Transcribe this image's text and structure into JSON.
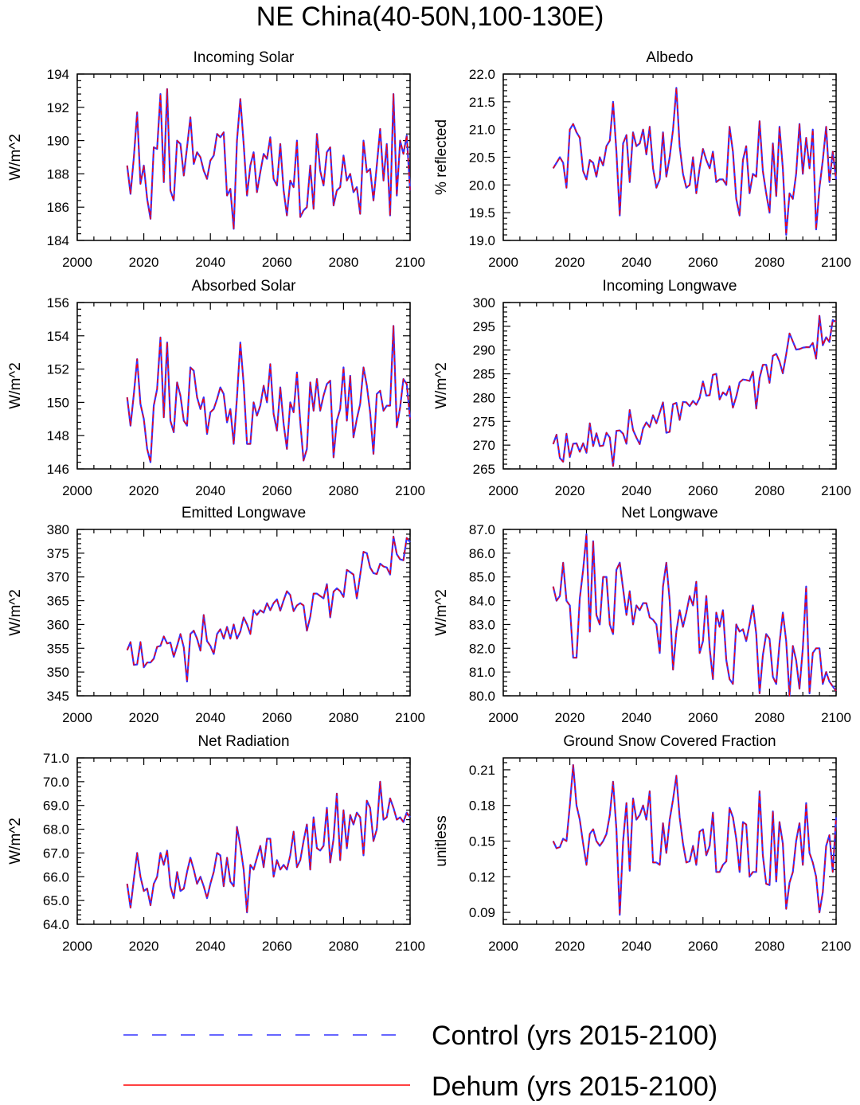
{
  "page_title": "NE China(40-50N,100-130E)",
  "legend": {
    "control_label": "Control (yrs 2015-2100)",
    "dehum_label": "Dehum (yrs 2015-2100)",
    "control_color": "#3333ff",
    "dehum_color": "#ff0000",
    "placement": "bottom"
  },
  "x_start_year": 2015,
  "chart_data": [
    {
      "type": "line",
      "title": "Incoming Solar",
      "ylabel": "W/m^2",
      "xlim": [
        2000,
        2100
      ],
      "ylim": [
        184,
        194
      ],
      "xticks": [
        2000,
        2020,
        2040,
        2060,
        2080,
        2100
      ],
      "yticks": [
        184,
        186,
        188,
        190,
        192,
        194
      ],
      "ytick_labels": [
        "184",
        "186",
        "188",
        "190",
        "192",
        "194"
      ],
      "grid": false,
      "series": [
        {
          "name": "Control (yrs 2015-2100)",
          "values": [
            188.5,
            186.8,
            189.0,
            191.7,
            187.4,
            188.5,
            186.5,
            185.3,
            189.6,
            189.5,
            192.8,
            187.5,
            193.1,
            187.0,
            186.4,
            190.0,
            189.8,
            187.9,
            189.6,
            191.4,
            188.6,
            189.3,
            189.0,
            188.2,
            187.7,
            188.8,
            189.1,
            190.4,
            190.2,
            190.5,
            186.7,
            187.1,
            184.7,
            190.0,
            192.5,
            189.8,
            186.7,
            188.5,
            189.3,
            186.9,
            188.1,
            189.2,
            188.9,
            190.2,
            187.7,
            187.3,
            189.8,
            187.0,
            185.5,
            187.6,
            187.2,
            190.0,
            185.4,
            185.8,
            186.0,
            188.5,
            185.9,
            190.4,
            188.2,
            187.3,
            189.3,
            189.6,
            186.1,
            187.0,
            187.2,
            189.1,
            187.6,
            188.0,
            186.9,
            187.2,
            185.6,
            190.0,
            188.1,
            188.3,
            186.4,
            188.5,
            190.7,
            187.6,
            189.8,
            185.5,
            192.8,
            186.7,
            190.0,
            189.2,
            190.3,
            187.0
          ]
        }
      ]
    },
    {
      "type": "line",
      "title": "Albedo",
      "ylabel": "% reflected",
      "xlim": [
        2000,
        2100
      ],
      "ylim": [
        19.0,
        22.0
      ],
      "xticks": [
        2000,
        2020,
        2040,
        2060,
        2080,
        2100
      ],
      "yticks": [
        19.0,
        19.5,
        20.0,
        20.5,
        21.0,
        21.5,
        22.0
      ],
      "ytick_labels": [
        "19.0",
        "19.5",
        "20.0",
        "20.5",
        "21.0",
        "21.5",
        "22.0"
      ],
      "grid": false,
      "series": [
        {
          "name": "Control (yrs 2015-2100)",
          "values": [
            20.3,
            20.4,
            20.5,
            20.4,
            19.95,
            21.0,
            21.1,
            20.95,
            20.85,
            20.25,
            20.1,
            20.45,
            20.4,
            20.15,
            20.5,
            20.35,
            20.7,
            20.8,
            21.5,
            20.6,
            19.45,
            20.75,
            20.9,
            20.05,
            20.95,
            20.7,
            20.75,
            21.0,
            20.55,
            21.05,
            20.3,
            19.95,
            20.1,
            20.95,
            20.15,
            20.5,
            21.0,
            21.75,
            20.7,
            20.2,
            19.95,
            20.0,
            20.5,
            19.85,
            20.3,
            20.65,
            20.45,
            20.3,
            20.6,
            20.05,
            20.1,
            20.1,
            20.0,
            21.05,
            20.6,
            19.75,
            19.45,
            20.45,
            20.7,
            19.85,
            20.2,
            20.15,
            21.15,
            20.25,
            19.85,
            19.5,
            20.75,
            19.8,
            21.05,
            20.3,
            19.1,
            19.85,
            19.75,
            20.2,
            21.1,
            20.2,
            20.85,
            20.3,
            21.0,
            19.2,
            19.95,
            20.45,
            21.05,
            20.05,
            20.6,
            20.1
          ]
        }
      ]
    },
    {
      "type": "line",
      "title": "Absorbed Solar",
      "ylabel": "W/m^2",
      "xlim": [
        2000,
        2100
      ],
      "ylim": [
        146,
        156
      ],
      "xticks": [
        2000,
        2020,
        2040,
        2060,
        2080,
        2100
      ],
      "yticks": [
        146,
        148,
        150,
        152,
        154,
        156
      ],
      "ytick_labels": [
        "146",
        "148",
        "150",
        "152",
        "154",
        "156"
      ],
      "grid": false,
      "series": [
        {
          "name": "Control (yrs 2015-2100)",
          "values": [
            150.3,
            148.6,
            150.5,
            152.6,
            149.9,
            149.0,
            147.2,
            146.4,
            149.8,
            150.8,
            153.9,
            149.1,
            153.6,
            148.9,
            148.2,
            151.2,
            150.4,
            148.9,
            148.6,
            152.1,
            151.9,
            150.3,
            149.6,
            150.3,
            148.1,
            149.4,
            149.6,
            150.2,
            150.9,
            150.5,
            148.8,
            149.6,
            147.5,
            150.3,
            153.6,
            151.1,
            147.5,
            147.5,
            150.0,
            149.2,
            149.8,
            151.0,
            150.0,
            152.3,
            149.3,
            148.3,
            150.9,
            148.7,
            147.2,
            150.0,
            149.4,
            151.8,
            148.8,
            146.5,
            147.2,
            151.2,
            149.5,
            151.4,
            149.5,
            150.4,
            151.1,
            151.3,
            146.7,
            148.9,
            149.6,
            152.1,
            148.9,
            151.6,
            147.9,
            149.0,
            149.9,
            152.1,
            151.0,
            149.4,
            146.9,
            150.5,
            150.7,
            149.5,
            149.8,
            149.8,
            154.6,
            148.5,
            149.7,
            151.4,
            151.1,
            149.0
          ]
        }
      ]
    },
    {
      "type": "line",
      "title": "Incoming Longwave",
      "ylabel": "W/m^2",
      "xlim": [
        2000,
        2100
      ],
      "ylim": [
        265,
        300
      ],
      "xticks": [
        2000,
        2020,
        2040,
        2060,
        2080,
        2100
      ],
      "yticks": [
        265,
        270,
        275,
        280,
        285,
        290,
        295,
        300
      ],
      "ytick_labels": [
        "265",
        "270",
        "275",
        "280",
        "285",
        "290",
        "295",
        "300"
      ],
      "grid": false,
      "series": [
        {
          "name": "Control (yrs 2015-2100)",
          "values": [
            270.2,
            272.2,
            267.3,
            266.5,
            272.4,
            267.5,
            270.3,
            270.4,
            268.6,
            270.4,
            268.4,
            274.6,
            269.8,
            272.5,
            269.8,
            269.9,
            272.6,
            271.6,
            265.6,
            273.0,
            273.1,
            272.4,
            270.3,
            277.4,
            273.2,
            271.6,
            270.2,
            273.5,
            274.8,
            273.8,
            276.3,
            274.6,
            276.8,
            279.0,
            272.6,
            272.8,
            278.6,
            278.9,
            275.3,
            279.1,
            279.0,
            278.2,
            279.3,
            278.5,
            279.9,
            283.4,
            280.4,
            280.5,
            284.8,
            285.0,
            279.6,
            281.1,
            280.5,
            282.4,
            277.9,
            280.2,
            283.2,
            283.8,
            283.7,
            283.5,
            285.5,
            277.7,
            284.1,
            286.9,
            286.9,
            283.1,
            288.8,
            289.2,
            287.6,
            285.1,
            289.1,
            293.5,
            291.8,
            290.1,
            290.2,
            290.5,
            290.6,
            290.6,
            291.5,
            288.2,
            297.2,
            291.0,
            292.7,
            291.7,
            296.3,
            296.0
          ]
        }
      ]
    },
    {
      "type": "line",
      "title": "Emitted Longwave",
      "ylabel": "W/m^2",
      "xlim": [
        2000,
        2100
      ],
      "ylim": [
        345,
        380
      ],
      "xticks": [
        2000,
        2020,
        2040,
        2060,
        2080,
        2100
      ],
      "yticks": [
        345,
        350,
        355,
        360,
        365,
        370,
        375,
        380
      ],
      "ytick_labels": [
        "345",
        "350",
        "355",
        "360",
        "365",
        "370",
        "375",
        "380"
      ],
      "grid": false,
      "series": [
        {
          "name": "Control (yrs 2015-2100)",
          "values": [
            354.6,
            356.3,
            351.5,
            351.6,
            356.3,
            351.0,
            352.0,
            352.0,
            352.8,
            355.3,
            355.5,
            357.5,
            356.0,
            356.2,
            353.2,
            355.5,
            358.0,
            355.2,
            348.0,
            358.0,
            358.7,
            357.0,
            354.5,
            362.0,
            356.5,
            355.5,
            353.8,
            358.0,
            359.0,
            357.0,
            359.5,
            357.0,
            360.0,
            357.0,
            358.5,
            361.5,
            360.0,
            358.0,
            363.0,
            362.0,
            363.0,
            362.5,
            364.5,
            363.0,
            364.5,
            365.3,
            362.9,
            365.1,
            367.0,
            366.2,
            362.8,
            364.0,
            364.5,
            364.0,
            358.7,
            361.6,
            366.5,
            366.5,
            366.0,
            365.5,
            368.5,
            361.5,
            366.9,
            367.6,
            367.0,
            365.8,
            371.5,
            371.0,
            370.5,
            365.5,
            370.4,
            375.3,
            375.0,
            372.0,
            370.8,
            370.6,
            372.8,
            372.2,
            372.0,
            370.5,
            378.5,
            374.8,
            373.7,
            373.5,
            378.2,
            377.3
          ]
        }
      ]
    },
    {
      "type": "line",
      "title": "Net Longwave",
      "ylabel": "W/m^2",
      "xlim": [
        2000,
        2100
      ],
      "ylim": [
        80.0,
        87.0
      ],
      "xticks": [
        2000,
        2020,
        2040,
        2060,
        2080,
        2100
      ],
      "yticks": [
        80.0,
        81.0,
        82.0,
        83.0,
        84.0,
        85.0,
        86.0,
        87.0
      ],
      "ytick_labels": [
        "80.0",
        "81.0",
        "82.0",
        "83.0",
        "84.0",
        "85.0",
        "86.0",
        "87.0"
      ],
      "grid": false,
      "series": [
        {
          "name": "Control (yrs 2015-2100)",
          "values": [
            84.6,
            84.0,
            84.2,
            85.6,
            84.0,
            83.8,
            81.6,
            81.6,
            84.1,
            85.3,
            86.8,
            82.7,
            86.5,
            83.4,
            83.0,
            85.0,
            85.0,
            83.0,
            82.6,
            85.3,
            85.6,
            84.5,
            83.4,
            84.4,
            83.0,
            83.8,
            83.6,
            83.9,
            83.9,
            83.3,
            83.2,
            83.0,
            81.8,
            84.6,
            85.6,
            84.0,
            81.1,
            82.7,
            83.6,
            82.9,
            83.5,
            84.2,
            83.8,
            84.8,
            81.8,
            82.3,
            84.2,
            82.0,
            80.7,
            83.5,
            82.9,
            83.6,
            81.5,
            80.7,
            80.5,
            83.0,
            82.7,
            82.8,
            82.3,
            83.0,
            83.8,
            82.6,
            80.1,
            81.7,
            82.6,
            82.4,
            80.8,
            80.5,
            82.2,
            83.5,
            82.3,
            80.0,
            82.1,
            81.5,
            80.3,
            82.0,
            84.6,
            80.1,
            81.8,
            82.0,
            82.0,
            80.5,
            81.0,
            80.6,
            80.4,
            80.2
          ]
        }
      ]
    },
    {
      "type": "line",
      "title": "Net Radiation",
      "ylabel": "W/m^2",
      "xlim": [
        2000,
        2100
      ],
      "ylim": [
        64.0,
        71.0
      ],
      "xticks": [
        2000,
        2020,
        2040,
        2060,
        2080,
        2100
      ],
      "yticks": [
        64.0,
        65.0,
        66.0,
        67.0,
        68.0,
        69.0,
        70.0,
        71.0
      ],
      "ytick_labels": [
        "64.0",
        "65.0",
        "66.0",
        "67.0",
        "68.0",
        "69.0",
        "70.0",
        "71.0"
      ],
      "grid": false,
      "series": [
        {
          "name": "Control (yrs 2015-2100)",
          "values": [
            65.7,
            64.7,
            65.9,
            67.0,
            66.0,
            65.4,
            65.5,
            64.8,
            65.7,
            66.0,
            67.0,
            66.5,
            67.1,
            65.6,
            65.1,
            66.2,
            65.4,
            65.5,
            66.2,
            66.8,
            66.3,
            65.7,
            66.0,
            65.6,
            65.1,
            65.7,
            66.2,
            67.0,
            66.9,
            65.6,
            66.8,
            65.8,
            65.6,
            68.1,
            67.3,
            66.3,
            64.5,
            66.5,
            66.3,
            66.8,
            67.3,
            66.4,
            67.6,
            67.6,
            66.0,
            66.7,
            66.3,
            66.5,
            66.3,
            66.9,
            67.9,
            66.4,
            66.7,
            67.5,
            68.2,
            66.3,
            68.5,
            67.2,
            67.1,
            67.3,
            68.9,
            66.6,
            67.6,
            69.5,
            66.7,
            68.8,
            67.2,
            68.6,
            68.2,
            68.7,
            68.5,
            66.9,
            69.2,
            68.9,
            67.5,
            68.0,
            70.0,
            68.4,
            68.5,
            69.3,
            68.9,
            68.4,
            68.5,
            68.3,
            68.7,
            68.5
          ]
        }
      ]
    },
    {
      "type": "line",
      "title": "Ground Snow Covered Fraction",
      "ylabel": "unitless",
      "xlim": [
        2000,
        2100
      ],
      "ylim": [
        0.08,
        0.22
      ],
      "xticks": [
        2000,
        2020,
        2040,
        2060,
        2080,
        2100
      ],
      "yticks": [
        0.09,
        0.12,
        0.15,
        0.18,
        0.21
      ],
      "ytick_labels": [
        "0.09",
        "0.12",
        "0.15",
        "0.18",
        "0.21"
      ],
      "grid": false,
      "series": [
        {
          "name": "Control (yrs 2015-2100)",
          "values": [
            0.15,
            0.144,
            0.145,
            0.152,
            0.15,
            0.18,
            0.214,
            0.18,
            0.168,
            0.148,
            0.13,
            0.156,
            0.16,
            0.15,
            0.146,
            0.15,
            0.156,
            0.172,
            0.2,
            0.16,
            0.088,
            0.15,
            0.182,
            0.125,
            0.186,
            0.168,
            0.172,
            0.18,
            0.168,
            0.192,
            0.132,
            0.132,
            0.13,
            0.165,
            0.14,
            0.168,
            0.185,
            0.205,
            0.17,
            0.148,
            0.132,
            0.133,
            0.146,
            0.13,
            0.158,
            0.16,
            0.138,
            0.146,
            0.174,
            0.124,
            0.124,
            0.13,
            0.133,
            0.178,
            0.17,
            0.152,
            0.124,
            0.166,
            0.164,
            0.12,
            0.124,
            0.124,
            0.192,
            0.138,
            0.114,
            0.113,
            0.175,
            0.116,
            0.166,
            0.148,
            0.093,
            0.115,
            0.124,
            0.15,
            0.165,
            0.13,
            0.182,
            0.14,
            0.132,
            0.12,
            0.09,
            0.107,
            0.146,
            0.155,
            0.124,
            0.17
          ]
        }
      ]
    }
  ]
}
